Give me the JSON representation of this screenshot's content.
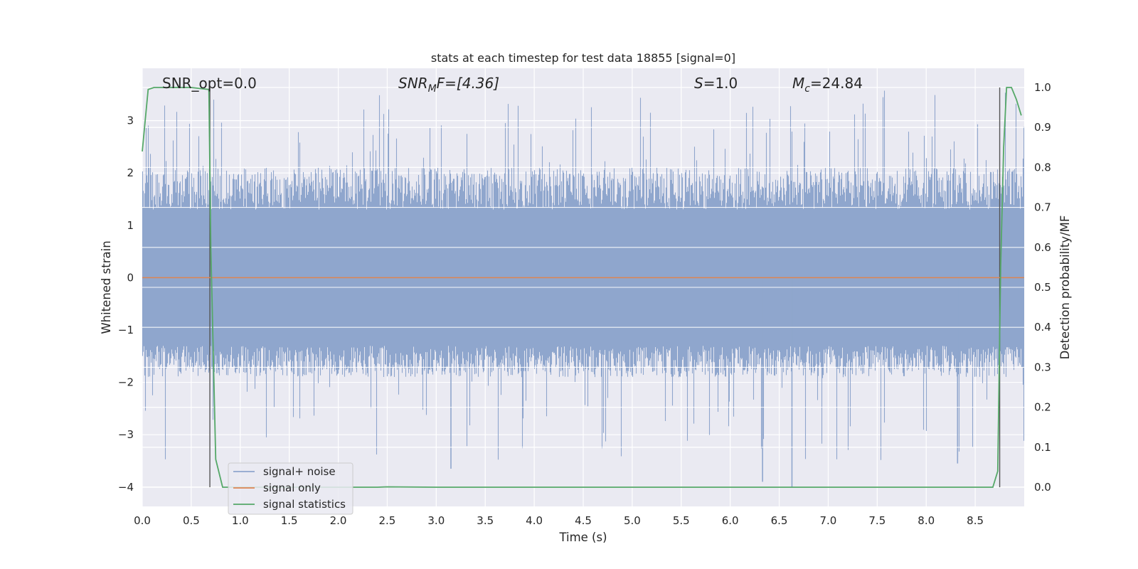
{
  "chart_data": {
    "type": "line",
    "title": "stats at each timestep for test data 18855 [signal=0]",
    "xlabel": "Time (s)",
    "ylabel": "Whitened strain",
    "y2label": "Detection probability/MF",
    "xlim": [
      0.0,
      9.0
    ],
    "ylim": [
      -4.37,
      4.0
    ],
    "y2lim": [
      -0.048,
      1.048
    ],
    "xticks": [
      "0.0",
      "0.5",
      "1.0",
      "1.5",
      "2.0",
      "2.5",
      "3.0",
      "3.5",
      "4.0",
      "4.5",
      "5.0",
      "5.5",
      "6.0",
      "6.5",
      "7.0",
      "7.5",
      "8.0",
      "8.5"
    ],
    "yticks": [
      "3",
      "2",
      "1",
      "0",
      "−1",
      "−2",
      "−3",
      "−4"
    ],
    "y2ticks": [
      "1.0",
      "0.9",
      "0.8",
      "0.7",
      "0.6",
      "0.5",
      "0.4",
      "0.3",
      "0.2",
      "0.1",
      "0.0"
    ],
    "grid": true,
    "legend_position": "lower-left",
    "annotations": {
      "snr_opt": "SNR_opt=0.0",
      "snr_mf_a": "SNR",
      "snr_mf_b": "M",
      "snr_mf_c": "F=[4.36]",
      "s_a": "S",
      "s_b": "=1.0",
      "mc_a": "M",
      "mc_b": "c",
      "mc_c": "=24.84"
    },
    "vertical_markers_x": [
      0.69,
      8.75
    ],
    "series": [
      {
        "name": "signal+ noise",
        "color": "#8fa6cd",
        "noise_envelope": {
          "typical_min": -1.9,
          "typical_max": 2.1,
          "peak_max": 3.58,
          "peak_min": -4.0
        }
      },
      {
        "name": "signal only",
        "color": "#dd8452",
        "y": [
          0,
          0
        ]
      },
      {
        "name": "signal statistics",
        "color": "#55a868",
        "x": [
          0.0,
          0.06,
          0.12,
          0.2,
          0.3,
          0.5,
          0.68,
          0.7,
          0.75,
          0.82,
          1.0,
          2.0,
          2.4,
          2.5,
          3.0,
          5.0,
          7.0,
          8.0,
          8.68,
          8.73,
          8.76,
          8.79,
          8.82,
          8.87,
          8.92,
          8.97
        ],
        "y": [
          0.84,
          0.995,
          1.0,
          1.0,
          1.0,
          1.0,
          0.995,
          0.6,
          0.07,
          0.0,
          0.0,
          0.0,
          0.0,
          0.001,
          0.0,
          0.0,
          0.0,
          0.0,
          0.0,
          0.04,
          0.55,
          0.85,
          1.0,
          1.0,
          0.97,
          0.93
        ]
      }
    ]
  }
}
